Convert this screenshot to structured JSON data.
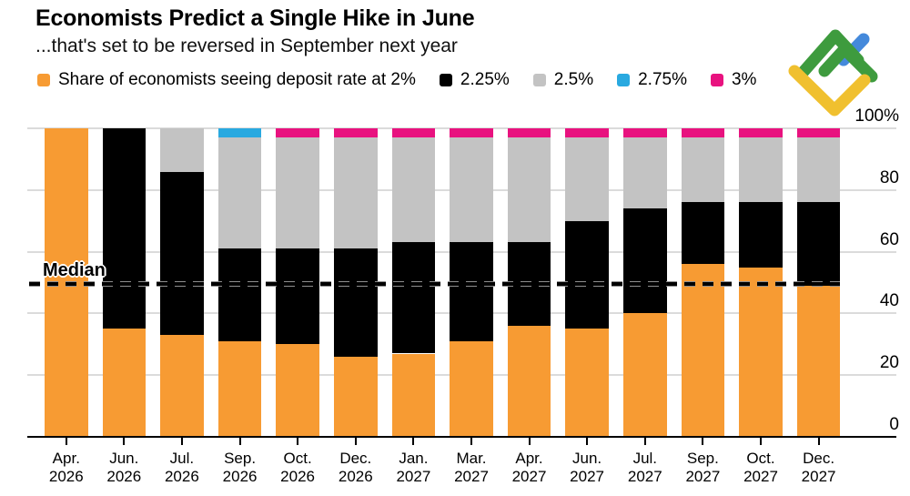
{
  "header": {
    "title": "Economists Predict a Single Hike in June",
    "subtitle": "...that's set to be reversed in September next year"
  },
  "legend": {
    "items": [
      {
        "name": "2%",
        "label": "Share of economists seeing deposit rate at 2%",
        "color": "#F79B33"
      },
      {
        "name": "2.25%",
        "label": "2.25%",
        "color": "#000000"
      },
      {
        "name": "2.5%",
        "label": "2.5%",
        "color": "#C3C3C3"
      },
      {
        "name": "2.75%",
        "label": "2.75%",
        "color": "#29A9E0"
      },
      {
        "name": "3%",
        "label": "3%",
        "color": "#E8127F"
      }
    ]
  },
  "brand_logo": {
    "name": "litefinance-mark",
    "colors": {
      "green": "#3E9B3E",
      "yellow": "#F0C02F",
      "blue": "#4489DB"
    }
  },
  "chart_data": {
    "type": "bar",
    "variant": "stacked",
    "title": "Economists Predict a Single Hike in June",
    "subtitle": "...that's set to be reversed in September next year",
    "categories": [
      "Apr. 2026",
      "Jun. 2026",
      "Jul. 2026",
      "Sep. 2026",
      "Oct. 2026",
      "Dec. 2026",
      "Jan. 2027",
      "Mar. 2027",
      "Apr. 2027",
      "Jun. 2027",
      "Jul. 2027",
      "Sep. 2027",
      "Oct. 2027",
      "Dec. 2027"
    ],
    "series": [
      {
        "name": "2%",
        "color": "#F79B33",
        "values": [
          100,
          35,
          33,
          31,
          30,
          26,
          27,
          31,
          36,
          35,
          40,
          56,
          55,
          49
        ]
      },
      {
        "name": "2.25%",
        "color": "#000000",
        "values": [
          0,
          65,
          53,
          30,
          31,
          35,
          36,
          32,
          27,
          35,
          34,
          20,
          21,
          27
        ]
      },
      {
        "name": "2.5%",
        "color": "#C3C3C3",
        "values": [
          0,
          0,
          14,
          36,
          36,
          36,
          34,
          34,
          34,
          27,
          23,
          21,
          21,
          21
        ]
      },
      {
        "name": "2.75%",
        "color": "#29A9E0",
        "values": [
          0,
          0,
          0,
          3,
          0,
          0,
          0,
          0,
          0,
          0,
          0,
          0,
          0,
          0
        ]
      },
      {
        "name": "3%",
        "color": "#E8127F",
        "values": [
          0,
          0,
          0,
          0,
          3,
          3,
          3,
          3,
          3,
          3,
          3,
          3,
          3,
          3
        ]
      }
    ],
    "ylim": [
      0,
      100
    ],
    "yticks": [
      0,
      20,
      40,
      60,
      80,
      100
    ],
    "ytick_labels": [
      "0",
      "20",
      "40",
      "60",
      "80",
      "100%"
    ],
    "grid": "horizontal",
    "legend_position": "top",
    "median_line": {
      "label": "Median",
      "value": 49.5,
      "style": "dashed"
    }
  }
}
